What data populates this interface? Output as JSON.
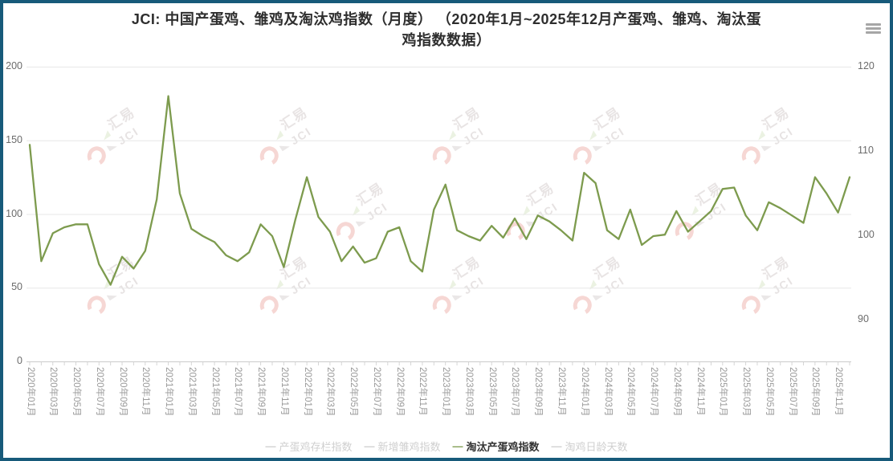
{
  "page": {
    "frame_color": "#175a7a",
    "background": "#ffffff"
  },
  "header": {
    "title_line1": "JCI: 中国产蛋鸡、雏鸡及淘汰鸡指数（月度） （2020年1月~2025年12月产蛋鸡、雏鸡、淘汰蛋",
    "title_line2": "鸡指数数据）",
    "menu_icon": "hamburger-menu"
  },
  "watermark": {
    "text_cn": "汇易",
    "text_en": "JCI"
  },
  "legend": {
    "marker": "—",
    "items": [
      {
        "label": "产蛋鸡存栏指数",
        "active": false
      },
      {
        "label": "新增雏鸡指数",
        "active": false
      },
      {
        "label": "淘汰产蛋鸡指数",
        "active": true,
        "color": "#7d9b4e"
      },
      {
        "label": "淘鸡日龄天数",
        "active": false
      }
    ]
  },
  "chart_data": {
    "type": "line",
    "title": "JCI: 中国产蛋鸡、雏鸡及淘汰鸡指数（月度）（2020年1月~2025年12月产蛋鸡、雏鸡、淘汰蛋鸡指数数据）",
    "x": [
      "2020年01月",
      "2020年02月",
      "2020年03月",
      "2020年04月",
      "2020年05月",
      "2020年06月",
      "2020年07月",
      "2020年08月",
      "2020年09月",
      "2020年10月",
      "2020年11月",
      "2020年12月",
      "2021年01月",
      "2021年02月",
      "2021年03月",
      "2021年04月",
      "2021年05月",
      "2021年06月",
      "2021年07月",
      "2021年08月",
      "2021年09月",
      "2021年10月",
      "2021年11月",
      "2021年12月",
      "2022年01月",
      "2022年02月",
      "2022年03月",
      "2022年04月",
      "2022年05月",
      "2022年06月",
      "2022年07月",
      "2022年08月",
      "2022年09月",
      "2022年10月",
      "2022年11月",
      "2022年12月",
      "2023年01月",
      "2023年02月",
      "2023年03月",
      "2023年04月",
      "2023年05月",
      "2023年06月",
      "2023年07月",
      "2023年08月",
      "2023年09月",
      "2023年10月",
      "2023年11月",
      "2023年12月",
      "2024年01月",
      "2024年02月",
      "2024年03月",
      "2024年04月",
      "2024年05月",
      "2024年06月",
      "2024年07月",
      "2024年08月",
      "2024年09月",
      "2024年10月",
      "2024年11月",
      "2024年12月",
      "2025年01月",
      "2025年02月",
      "2025年03月",
      "2025年04月",
      "2025年05月",
      "2025年06月",
      "2025年07月",
      "2025年08月",
      "2025年09月",
      "2025年10月",
      "2025年11月",
      "2025年12月"
    ],
    "x_label_every": 2,
    "y_axis_left": {
      "ticks": [
        0,
        50,
        100,
        150,
        200
      ],
      "range": [
        0,
        200
      ]
    },
    "y_axis_right": {
      "ticks": [
        90,
        100,
        110,
        120
      ],
      "range": [
        85,
        120
      ]
    },
    "grid": true,
    "legend_position": "bottom",
    "series": [
      {
        "name": "产蛋鸡存栏指数",
        "visible": false,
        "values": []
      },
      {
        "name": "新增雏鸡指数",
        "visible": false,
        "values": []
      },
      {
        "name": "淘汰产蛋鸡指数",
        "visible": true,
        "color": "#7d9b4e",
        "values": [
          147,
          68,
          87,
          91,
          93,
          93,
          66,
          52,
          71,
          63,
          75,
          110,
          180,
          114,
          90,
          85,
          81,
          72,
          68,
          74,
          93,
          85,
          64,
          96,
          125,
          98,
          88,
          68,
          78,
          67,
          70,
          88,
          91,
          68,
          61,
          103,
          120,
          89,
          85,
          82,
          92,
          84,
          97,
          83,
          99,
          95,
          89,
          82,
          128,
          121,
          89,
          83,
          103,
          79,
          85,
          86,
          102,
          88,
          95,
          102,
          117,
          118,
          99,
          89,
          108,
          104,
          99,
          94,
          125,
          114,
          101,
          125
        ]
      },
      {
        "name": "淘鸡日龄天数",
        "visible": false,
        "values": []
      }
    ]
  }
}
